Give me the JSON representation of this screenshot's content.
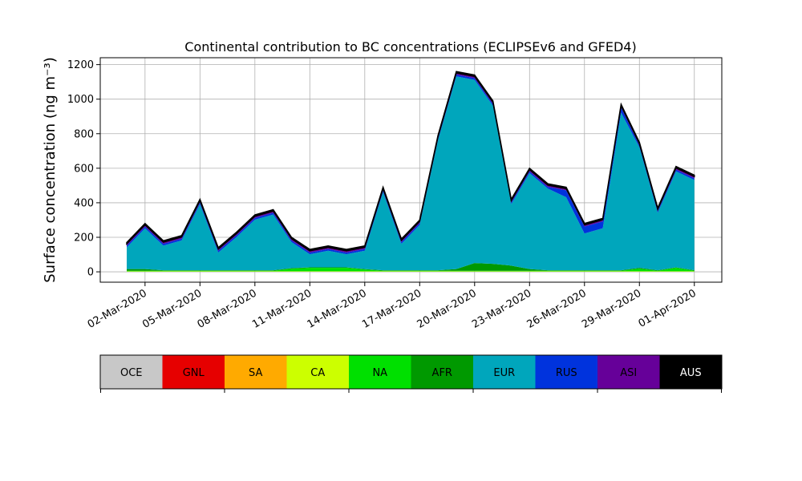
{
  "chart_data": {
    "type": "stacked-area",
    "title": "Continental contribution to BC concentrations (ECLIPSEv6 and GFED4)",
    "y_label": "Surface concentration (ng m⁻³)",
    "x": [
      "2020-03-01",
      "2020-03-02",
      "2020-03-03",
      "2020-03-04",
      "2020-03-05",
      "2020-03-06",
      "2020-03-07",
      "2020-03-08",
      "2020-03-09",
      "2020-03-10",
      "2020-03-11",
      "2020-03-12",
      "2020-03-13",
      "2020-03-14",
      "2020-03-15",
      "2020-03-16",
      "2020-03-17",
      "2020-03-18",
      "2020-03-19",
      "2020-03-20",
      "2020-03-21",
      "2020-03-22",
      "2020-03-23",
      "2020-03-24",
      "2020-03-25",
      "2020-03-26",
      "2020-03-27",
      "2020-03-28",
      "2020-03-29",
      "2020-03-30",
      "2020-03-31",
      "2020-04-01"
    ],
    "series": [
      {
        "name": "OCE",
        "color": "#c8c8c8",
        "values": [
          1,
          1,
          1,
          1,
          1,
          1,
          1,
          1,
          1,
          1,
          1,
          1,
          1,
          1,
          1,
          1,
          1,
          1,
          1,
          1,
          1,
          1,
          1,
          1,
          1,
          1,
          1,
          1,
          1,
          1,
          1,
          1
        ]
      },
      {
        "name": "GNL",
        "color": "#e60000",
        "values": [
          0,
          0,
          0,
          0,
          0,
          0,
          0,
          0,
          0,
          0,
          0,
          0,
          0,
          0,
          0,
          0,
          0,
          0,
          0,
          0,
          0,
          0,
          0,
          0,
          0,
          0,
          0,
          0,
          0,
          0,
          0,
          0
        ]
      },
      {
        "name": "SA",
        "color": "#ffaa00",
        "values": [
          0,
          0,
          0,
          0,
          0,
          0,
          0,
          0,
          0,
          0,
          0,
          0,
          0,
          0,
          0,
          0,
          0,
          0,
          0,
          0,
          0,
          0,
          0,
          0,
          0,
          0,
          0,
          0,
          0,
          0,
          0,
          0
        ]
      },
      {
        "name": "CA",
        "color": "#ccff00",
        "values": [
          2,
          2,
          2,
          2,
          2,
          2,
          2,
          2,
          2,
          2,
          2,
          2,
          2,
          2,
          2,
          2,
          2,
          2,
          2,
          2,
          2,
          2,
          2,
          2,
          2,
          2,
          2,
          2,
          2,
          2,
          2,
          2
        ]
      },
      {
        "name": "NA",
        "color": "#00e000",
        "values": [
          3,
          3,
          3,
          3,
          3,
          3,
          3,
          3,
          3,
          15,
          20,
          20,
          20,
          10,
          3,
          3,
          3,
          3,
          3,
          3,
          3,
          3,
          3,
          3,
          3,
          3,
          3,
          3,
          15,
          3,
          20,
          3
        ]
      },
      {
        "name": "AFR",
        "color": "#009900",
        "values": [
          10,
          10,
          3,
          3,
          3,
          3,
          3,
          3,
          3,
          3,
          3,
          3,
          3,
          3,
          3,
          3,
          3,
          3,
          10,
          45,
          40,
          30,
          10,
          3,
          3,
          3,
          3,
          3,
          5,
          3,
          3,
          3
        ]
      },
      {
        "name": "EUR",
        "color": "#00a6bc",
        "values": [
          126,
          236,
          143,
          173,
          383,
          103,
          193,
          293,
          323,
          151,
          76,
          96,
          76,
          106,
          453,
          153,
          263,
          753,
          1116,
          1061,
          916,
          356,
          556,
          473,
          423,
          213,
          243,
          913,
          699,
          333,
          556,
          523
        ]
      },
      {
        "name": "RUS",
        "color": "#0033dd",
        "values": [
          10,
          10,
          10,
          10,
          10,
          10,
          10,
          10,
          10,
          10,
          10,
          10,
          10,
          10,
          10,
          10,
          10,
          10,
          10,
          10,
          10,
          10,
          10,
          10,
          40,
          40,
          40,
          30,
          10,
          10,
          10,
          10
        ]
      },
      {
        "name": "ASI",
        "color": "#660099",
        "values": [
          10,
          10,
          10,
          10,
          10,
          10,
          10,
          10,
          10,
          10,
          10,
          10,
          10,
          10,
          10,
          10,
          10,
          10,
          10,
          10,
          10,
          10,
          10,
          10,
          10,
          10,
          10,
          10,
          10,
          10,
          10,
          10
        ]
      },
      {
        "name": "AUS",
        "color": "#000000",
        "values": [
          8,
          8,
          8,
          8,
          8,
          8,
          8,
          8,
          8,
          8,
          8,
          8,
          8,
          8,
          8,
          8,
          8,
          8,
          8,
          8,
          8,
          8,
          8,
          8,
          8,
          8,
          8,
          8,
          8,
          8,
          8,
          8
        ]
      }
    ],
    "xlim": [
      "2020-02-28T13:18Z",
      "2020-04-02T12:00Z"
    ],
    "xticks": [
      {
        "value": "2020-03-02",
        "label": "02-Mar-2020"
      },
      {
        "value": "2020-03-05",
        "label": "05-Mar-2020"
      },
      {
        "value": "2020-03-08",
        "label": "08-Mar-2020"
      },
      {
        "value": "2020-03-11",
        "label": "11-Mar-2020"
      },
      {
        "value": "2020-03-14",
        "label": "14-Mar-2020"
      },
      {
        "value": "2020-03-17",
        "label": "17-Mar-2020"
      },
      {
        "value": "2020-03-20",
        "label": "20-Mar-2020"
      },
      {
        "value": "2020-03-23",
        "label": "23-Mar-2020"
      },
      {
        "value": "2020-03-26",
        "label": "26-Mar-2020"
      },
      {
        "value": "2020-03-29",
        "label": "29-Mar-2020"
      },
      {
        "value": "2020-04-01",
        "label": "01-Apr-2020"
      }
    ],
    "ylim": [
      -60,
      1240
    ],
    "yticks": [
      0,
      200,
      400,
      600,
      800,
      1000,
      1200
    ],
    "grid": true,
    "legend": "bottom"
  }
}
